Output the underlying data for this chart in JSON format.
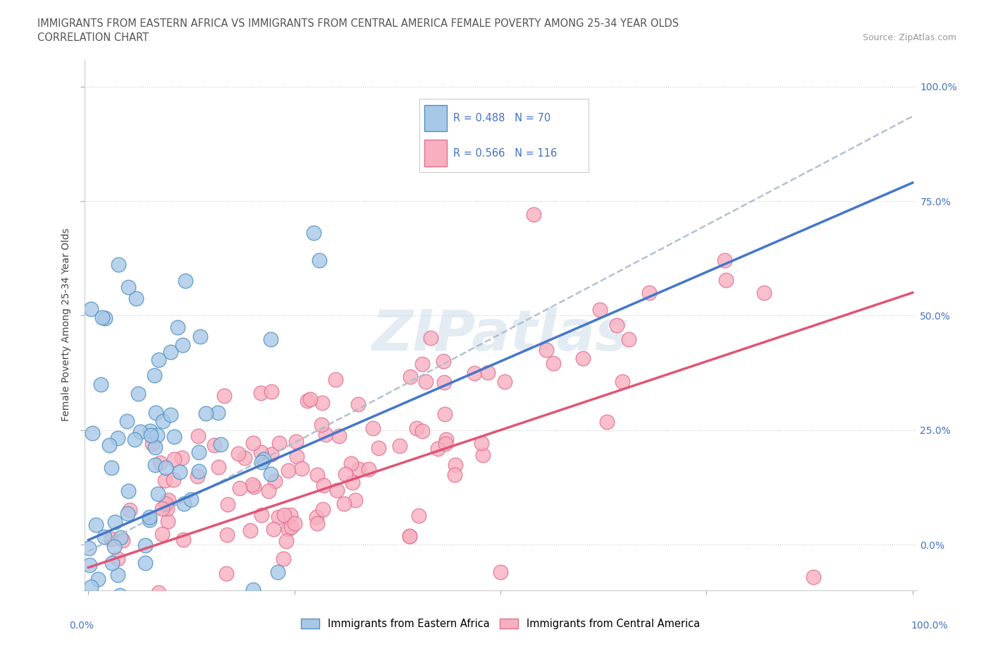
{
  "title_line1": "IMMIGRANTS FROM EASTERN AFRICA VS IMMIGRANTS FROM CENTRAL AMERICA FEMALE POVERTY AMONG 25-34 YEAR OLDS",
  "title_line2": "CORRELATION CHART",
  "source_text": "Source: ZipAtlas.com",
  "ylabel": "Female Poverty Among 25-34 Year Olds",
  "legend1_r": "R = 0.488",
  "legend1_n": "N = 70",
  "legend2_r": "R = 0.566",
  "legend2_n": "N = 116",
  "blue_scatter_face": "#a8c8e8",
  "blue_scatter_edge": "#5090c0",
  "pink_scatter_face": "#f8b0c0",
  "pink_scatter_edge": "#e07090",
  "blue_line_color": "#4477cc",
  "pink_line_color": "#e05575",
  "dashed_line_color": "#aabbcc",
  "grid_color": "#cccccc",
  "bg_color": "#ffffff",
  "title_color": "#555555",
  "axis_label_color": "#4472c4",
  "watermark_color": "#c8d8e8",
  "watermark_alpha": 0.5
}
